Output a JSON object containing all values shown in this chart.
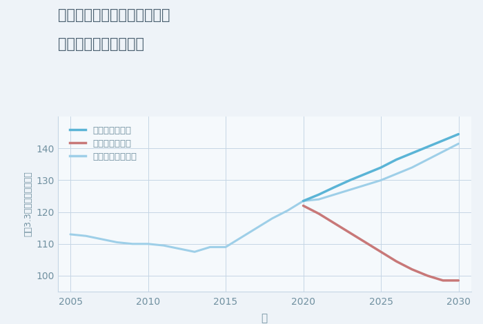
{
  "title_line1": "兵庫県西宮市甲子園三番町の",
  "title_line2": "中古戸建ての価格推移",
  "xlabel": "年",
  "ylabel": "坪（3.3㎡）単価（万円）",
  "background_color": "#eef3f8",
  "plot_bg_color": "#f5f9fc",
  "grid_color": "#c5d5e5",
  "title_color": "#4a6070",
  "axis_color": "#7090a0",
  "legend_labels": [
    "グッドシナリオ",
    "バッドシナリオ",
    "ノーマルシナリオ"
  ],
  "good_color": "#5ab4d6",
  "bad_color": "#c87878",
  "normal_color": "#9ecfe8",
  "historical_years": [
    2005,
    2006,
    2007,
    2008,
    2009,
    2010,
    2011,
    2012,
    2013,
    2014,
    2015,
    2016,
    2017,
    2018,
    2019,
    2020
  ],
  "historical_values": [
    113.0,
    112.5,
    111.5,
    110.5,
    110.0,
    110.0,
    109.5,
    108.5,
    107.5,
    109.0,
    109.0,
    112.0,
    115.0,
    118.0,
    120.5,
    123.5
  ],
  "future_years": [
    2020,
    2021,
    2022,
    2023,
    2024,
    2025,
    2026,
    2027,
    2028,
    2029,
    2030
  ],
  "good_values": [
    123.5,
    125.5,
    127.8,
    130.0,
    132.0,
    134.0,
    136.5,
    138.5,
    140.5,
    142.5,
    144.5
  ],
  "normal_values": [
    123.5,
    124.0,
    125.5,
    127.0,
    128.5,
    130.0,
    132.0,
    134.0,
    136.5,
    139.0,
    141.5
  ],
  "bad_values": [
    122.0,
    119.5,
    116.5,
    113.5,
    110.5,
    107.5,
    104.5,
    102.0,
    100.0,
    98.5,
    98.5
  ],
  "ylim": [
    95,
    150
  ],
  "xlim": [
    2004.2,
    2030.8
  ],
  "yticks": [
    100,
    110,
    120,
    130,
    140
  ],
  "xticks": [
    2005,
    2010,
    2015,
    2020,
    2025,
    2030
  ]
}
